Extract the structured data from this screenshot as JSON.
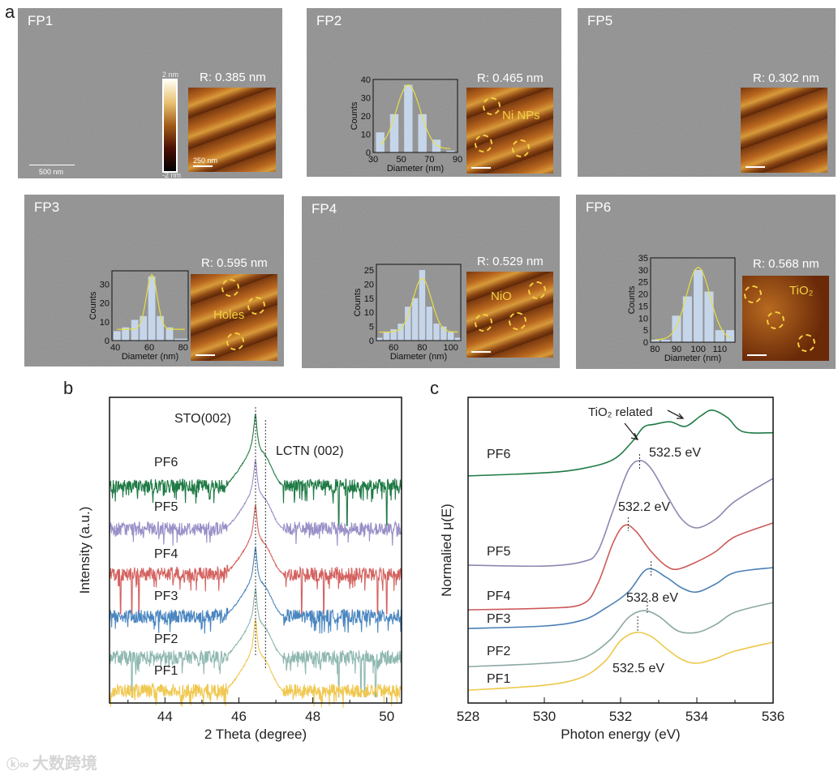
{
  "panel_labels": {
    "a": "a",
    "b": "b",
    "c": "c"
  },
  "panel_a": {
    "tiles": [
      {
        "name": "FP1",
        "roughness": "R: 0.385 nm",
        "sem_scale": "500 nm",
        "afm_scale": "250 nm",
        "colorbar_max": "2 nm",
        "colorbar_min": "-2 nm"
      },
      {
        "name": "FP2",
        "roughness": "R: 0.465 nm",
        "afm_annotation": "Ni NPs"
      },
      {
        "name": "FP5",
        "roughness": "R: 0.302 nm"
      },
      {
        "name": "FP3",
        "roughness": "R: 0.595 nm",
        "afm_annotation": "Holes"
      },
      {
        "name": "FP4",
        "roughness": "R: 0.529 nm",
        "afm_annotation": "NiO"
      },
      {
        "name": "FP6",
        "roughness": "R: 0.568 nm",
        "afm_annotation": "TiO₂"
      }
    ]
  },
  "chart_data": [
    {
      "id": "FP2-hist",
      "type": "bar",
      "xlabel": "Diameter (nm)",
      "ylabel": "Counts",
      "xlim": [
        30,
        90
      ],
      "ylim": [
        0,
        40
      ],
      "xticks": [
        30,
        50,
        70,
        90
      ],
      "yticks": [
        0,
        10,
        20,
        30,
        40
      ],
      "bin_width": 6,
      "x": [
        35,
        45,
        55,
        65,
        75,
        85
      ],
      "values": [
        11,
        21,
        37,
        21,
        7,
        1
      ],
      "fit": {
        "mean": 55,
        "sigma": 8.5,
        "amp": 35,
        "base": 2
      }
    },
    {
      "id": "FP3-hist",
      "type": "bar",
      "xlabel": "Diameter (nm)",
      "ylabel": "Counts",
      "xlim": [
        38,
        83
      ],
      "ylim": [
        0,
        37
      ],
      "xticks": [
        40,
        60,
        80
      ],
      "yticks": [
        0,
        10,
        20,
        30
      ],
      "bin_width": 4.2,
      "x": [
        41,
        46,
        51.5,
        56.5,
        61.5,
        66.5,
        72,
        77,
        81
      ],
      "values": [
        5,
        7,
        11,
        13,
        34,
        13,
        7,
        1,
        1
      ],
      "fit": {
        "mean": 61.5,
        "sigma": 3.2,
        "amp": 29,
        "base": 6
      }
    },
    {
      "id": "FP4-hist",
      "type": "bar",
      "xlabel": "Diameter (nm)",
      "ylabel": "Counts",
      "xlim": [
        48,
        107
      ],
      "ylim": [
        0,
        27
      ],
      "xticks": [
        60,
        80,
        100
      ],
      "yticks": [
        0,
        5,
        10,
        15,
        20,
        25
      ],
      "bin_width": 4.2,
      "x": [
        50,
        55,
        60,
        65,
        70,
        75,
        80,
        85,
        90,
        95,
        100,
        105
      ],
      "values": [
        1,
        3,
        4,
        6,
        12,
        15,
        25,
        12,
        6,
        5,
        3,
        1
      ],
      "fit": {
        "mean": 80,
        "sigma": 6.5,
        "amp": 19,
        "base": 3
      }
    },
    {
      "id": "FP6-hist",
      "type": "bar",
      "xlabel": "Diameter (nm)",
      "ylabel": "Counts",
      "xlim": [
        78,
        117
      ],
      "ylim": [
        0,
        35
      ],
      "xticks": [
        80,
        90,
        100,
        110
      ],
      "yticks": [
        0,
        5,
        10,
        15,
        20,
        25,
        30,
        35
      ],
      "bin_width": 4.2,
      "x": [
        80,
        85,
        90,
        95,
        100,
        105,
        110,
        115
      ],
      "values": [
        1,
        1,
        11,
        19,
        30,
        21,
        5,
        5
      ],
      "fit": {
        "mean": 100,
        "sigma": 5.5,
        "amp": 30,
        "base": 1
      }
    },
    {
      "id": "xrd",
      "type": "line",
      "xlabel": "2 Theta (degree)",
      "ylabel": "Intensity (a.u.)",
      "xlim": [
        42.5,
        50.4
      ],
      "ylim": [
        0,
        10
      ],
      "xticks": [
        44,
        46,
        48,
        50
      ],
      "annotations": [
        {
          "text": "STO(002)",
          "x": 46.45
        },
        {
          "text": "LCTN (002)",
          "x": 46.72
        }
      ],
      "series": [
        {
          "name": "PF6",
          "color": "#1f7a45",
          "offset": 7.1,
          "peak": 2.4,
          "spikes": [
            48.7,
            48.93,
            50.0
          ]
        },
        {
          "name": "PF5",
          "color": "#9a90c8",
          "offset": 5.7,
          "peak": 2.3,
          "spikes": []
        },
        {
          "name": "PF4",
          "color": "#d4615f",
          "offset": 4.22,
          "peak": 2.3,
          "spikes": [
            42.8,
            43.1,
            43.3,
            47.7,
            48.3,
            49.75,
            50.0
          ]
        },
        {
          "name": "PF3",
          "color": "#4a86c0",
          "offset": 2.84,
          "peak": 2.3,
          "spikes": []
        },
        {
          "name": "PF2",
          "color": "#8fb8b0",
          "offset": 1.5,
          "peak": 2.3,
          "spikes": [
            43.1,
            48.7,
            49.3,
            49.4,
            49.7
          ]
        },
        {
          "name": "PF1",
          "color": "#f0c850",
          "offset": 0.4,
          "peak": 2.4,
          "spikes": []
        }
      ]
    },
    {
      "id": "xas",
      "type": "line",
      "xlabel": "Photon energy (eV)",
      "ylabel": "Normalied μ(E)",
      "xlim": [
        528,
        536
      ],
      "ylim": [
        0,
        10
      ],
      "xticks": [
        528,
        530,
        532,
        534,
        536
      ],
      "annotations": [
        {
          "text": "TiO₂ related"
        },
        {
          "text": "532.5 eV",
          "marker": 532.5
        },
        {
          "text": "532.2 eV",
          "marker": 532.2
        },
        {
          "text": "532.8 eV",
          "marker": 532.8
        },
        {
          "text": "532.5 eV",
          "marker": 532.45
        }
      ],
      "series": [
        {
          "name": "PF6",
          "color": "#1f7a45",
          "x": [
            528,
            530,
            531,
            531.8,
            532.3,
            532.6,
            532.9,
            533.3,
            533.7,
            534.1,
            534.4,
            534.8,
            535.2,
            536
          ],
          "y": [
            7.43,
            7.53,
            7.67,
            7.96,
            8.54,
            9.02,
            9.12,
            9.2,
            9.05,
            9.39,
            9.58,
            9.34,
            8.88,
            8.84
          ]
        },
        {
          "name": "PF5",
          "color": "#8c88b0",
          "x": [
            528,
            530,
            531,
            531.4,
            531.8,
            532.2,
            532.5,
            532.8,
            533.2,
            533.6,
            534,
            534.5,
            535,
            536
          ],
          "y": [
            4.51,
            4.48,
            4.62,
            4.96,
            6.29,
            7.61,
            7.93,
            7.67,
            6.82,
            6.02,
            5.73,
            6.02,
            6.6,
            7.35
          ]
        },
        {
          "name": "PF4",
          "color": "#cc5a58",
          "x": [
            528,
            530,
            531,
            531.4,
            531.8,
            532.1,
            532.4,
            532.8,
            533.2,
            533.5,
            534,
            534.5,
            535,
            536
          ],
          "y": [
            3.05,
            3.1,
            3.24,
            3.9,
            5.23,
            5.81,
            5.62,
            4.96,
            4.48,
            4.38,
            4.62,
            4.96,
            5.44,
            5.89
          ]
        },
        {
          "name": "PF3",
          "color": "#4a7fb5",
          "x": [
            528,
            530,
            531,
            531.6,
            532.2,
            532.7,
            533.2,
            533.6,
            534,
            534.5,
            535,
            536
          ],
          "y": [
            2.44,
            2.52,
            2.71,
            3.1,
            3.63,
            4.38,
            4.11,
            3.77,
            3.63,
            3.9,
            4.27,
            4.43
          ]
        },
        {
          "name": "PF2",
          "color": "#8aa8a4",
          "x": [
            528,
            530,
            531,
            531.7,
            532.2,
            532.6,
            533,
            533.5,
            534,
            534.5,
            535,
            536
          ],
          "y": [
            1.19,
            1.3,
            1.46,
            2.04,
            2.79,
            3.02,
            2.84,
            2.36,
            2.31,
            2.57,
            2.97,
            3.29
          ]
        },
        {
          "name": "PF1",
          "color": "#ecc94a",
          "x": [
            528,
            530,
            531,
            531.6,
            532,
            532.4,
            532.8,
            533.2,
            533.6,
            534,
            534.5,
            535,
            536
          ],
          "y": [
            0.42,
            0.58,
            0.85,
            1.38,
            2.04,
            2.31,
            2.18,
            1.78,
            1.43,
            1.3,
            1.46,
            1.7,
            1.99
          ]
        }
      ]
    }
  ],
  "watermark": "大数跨境"
}
